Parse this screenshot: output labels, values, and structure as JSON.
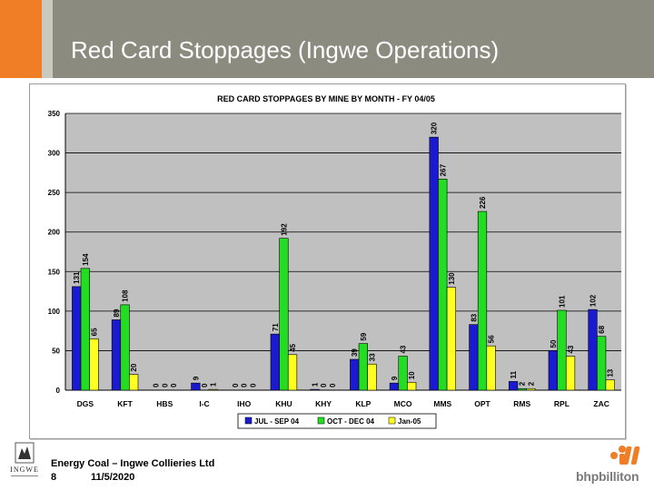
{
  "slide": {
    "title": "Red Card Stoppages (Ingwe Operations)"
  },
  "footer": {
    "company": "Energy Coal – Ingwe Collieries Ltd",
    "page": "8",
    "date": "11/5/2020",
    "logo_left": "INGWE",
    "logo_right": "bhpbilliton"
  },
  "colors": {
    "header": "#8b8b7f",
    "accent_orange": "#f07e26",
    "series_jul_sep": "#1a1ad0",
    "series_oct_dec": "#22dd22",
    "series_jan": "#ffff22",
    "plot_bg": "#c0c0c0"
  },
  "chart_data": {
    "type": "bar",
    "title": "RED CARD STOPPAGES BY MINE BY MONTH - FY 04/05",
    "xlabel": "",
    "ylabel": "",
    "ylim": [
      0,
      350
    ],
    "yticks": [
      0,
      50,
      100,
      150,
      200,
      250,
      300,
      350
    ],
    "grid": true,
    "legend_position": "bottom",
    "categories": [
      "DGS",
      "KFT",
      "HBS",
      "I-C",
      "IHO",
      "KHU",
      "KHY",
      "KLP",
      "MCO",
      "MMS",
      "OPT",
      "RMS",
      "RPL",
      "ZAC"
    ],
    "series": [
      {
        "name": "JUL - SEP 04",
        "color": "#1a1ad0",
        "values": [
          131,
          89,
          0,
          9,
          0,
          71,
          1,
          39,
          9,
          320,
          83,
          11,
          50,
          102
        ]
      },
      {
        "name": "OCT - DEC 04",
        "color": "#22dd22",
        "values": [
          154,
          108,
          0,
          0,
          0,
          192,
          0,
          59,
          43,
          267,
          226,
          2,
          101,
          68
        ]
      },
      {
        "name": "Jan-05",
        "color": "#ffff22",
        "values": [
          65,
          20,
          0,
          1,
          0,
          45,
          0,
          33,
          10,
          130,
          56,
          2,
          43,
          13
        ]
      }
    ]
  }
}
